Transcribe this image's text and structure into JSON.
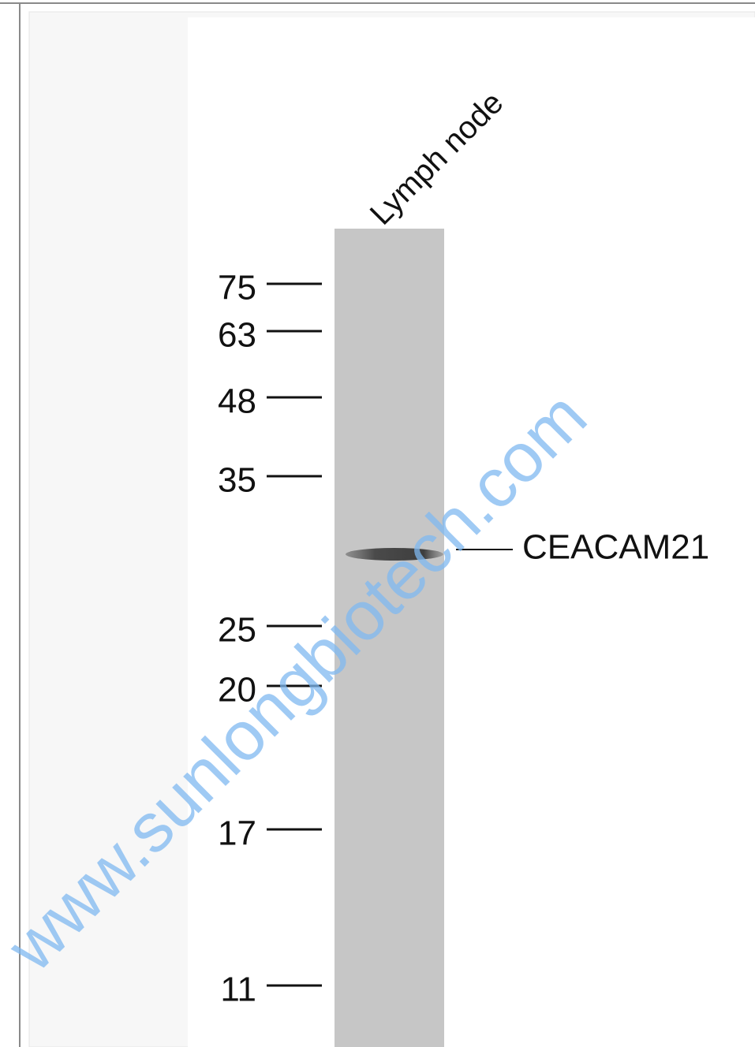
{
  "lane_label": "Lymph node",
  "markers": [
    "75",
    "63",
    "48",
    "35",
    "25",
    "20",
    "17",
    "11"
  ],
  "band_label": "CEACAM21",
  "watermark": "www.sunlongbiotech.com"
}
